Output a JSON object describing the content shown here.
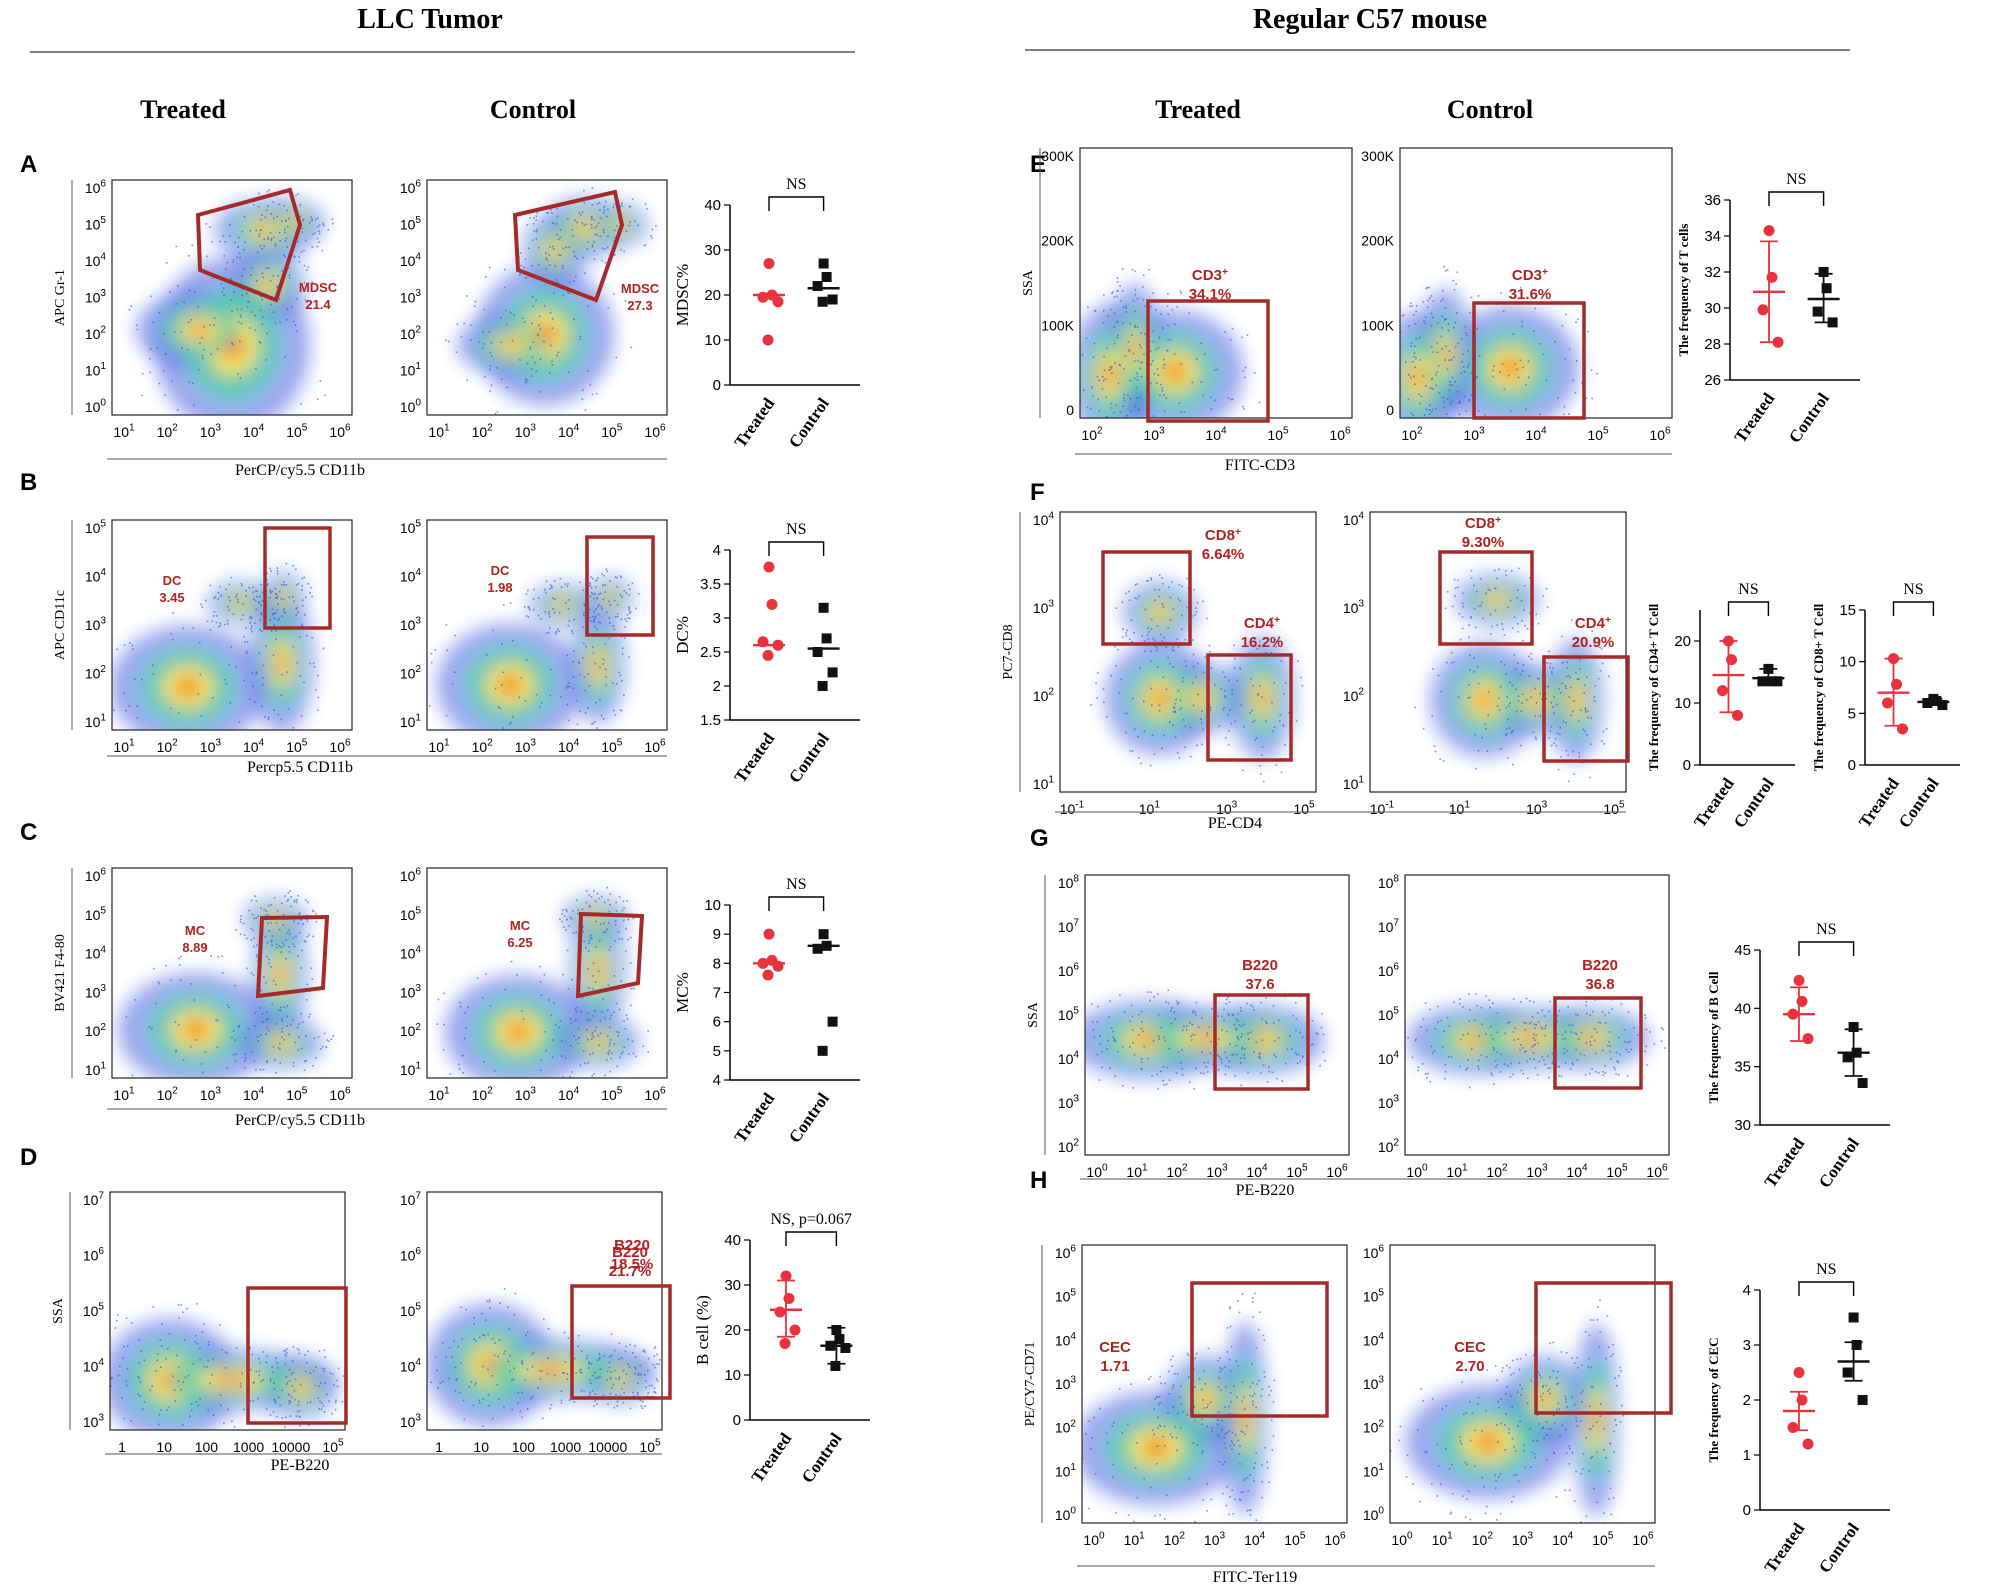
{
  "sections": {
    "left_title": "LLC Tumor",
    "right_title": "Regular C57 mouse",
    "treated_label": "Treated",
    "control_label": "Control"
  },
  "colors": {
    "gate": "#a52a2a",
    "gate_label": "#b22222",
    "treated_dots": "#e8323c",
    "control_dots": "#111111",
    "density_low": "#2a45d8",
    "density_mid": "#2ec4a0",
    "density_high": "#f7e51e",
    "density_peak": "#f0281e"
  },
  "panels": [
    {
      "id": "A",
      "y_axis_label": "APC Gr-1",
      "x_axis_label": "PerCP/cy5.5 CD11b",
      "y_ticks": [
        "10^6",
        "10^5",
        "10^4",
        "10^3",
        "10^2",
        "10^1",
        "10^0"
      ],
      "x_ticks": [
        "10^1",
        "10^2",
        "10^3",
        "10^4",
        "10^5",
        "10^6"
      ],
      "gates": [
        {
          "name": "MDSC",
          "value": "21.4"
        },
        {
          "name": "MDSC",
          "value": "27.3"
        }
      ],
      "chart_data": {
        "type": "scatter",
        "title": "NS",
        "ylabel": "MDSC%",
        "ylim": [
          0,
          40
        ],
        "y_ticks": [
          0,
          10,
          20,
          30,
          40
        ],
        "categories": [
          "Treated",
          "Control"
        ],
        "series": [
          {
            "name": "Treated",
            "values": [
              27,
              20,
              19.5,
              18.5,
              10
            ],
            "mean": 20
          },
          {
            "name": "Control",
            "values": [
              27,
              24,
              22,
              19,
              18.5
            ],
            "mean": 21.5
          }
        ],
        "significance": "NS"
      }
    },
    {
      "id": "B",
      "y_axis_label": "APC CD11c",
      "x_axis_label": "Percp5.5 CD11b",
      "y_ticks": [
        "10^5",
        "10^4",
        "10^3",
        "10^2",
        "10^1"
      ],
      "x_ticks": [
        "10^1",
        "10^2",
        "10^3",
        "10^4",
        "10^5",
        "10^6"
      ],
      "gates": [
        {
          "name": "DC",
          "value": "3.45"
        },
        {
          "name": "DC",
          "value": "1.98"
        }
      ],
      "chart_data": {
        "type": "scatter",
        "title": "NS",
        "ylabel": "DC%",
        "ylim": [
          1.5,
          4.0
        ],
        "y_ticks": [
          1.5,
          2.0,
          2.5,
          3.0,
          3.5,
          4.0
        ],
        "categories": [
          "Treated",
          "Control"
        ],
        "series": [
          {
            "name": "Treated",
            "values": [
              3.75,
              3.2,
              2.65,
              2.6,
              2.45
            ],
            "mean": 2.6
          },
          {
            "name": "Control",
            "values": [
              3.15,
              2.7,
              2.5,
              2.2,
              2.0
            ],
            "mean": 2.55
          }
        ],
        "significance": "NS"
      }
    },
    {
      "id": "C",
      "y_axis_label": "BV421 F4-80",
      "x_axis_label": "PerCP/cy5.5 CD11b",
      "y_ticks": [
        "10^6",
        "10^5",
        "10^4",
        "10^3",
        "10^2",
        "10^1"
      ],
      "x_ticks": [
        "10^1",
        "10^2",
        "10^3",
        "10^4",
        "10^5",
        "10^6"
      ],
      "gates": [
        {
          "name": "MC",
          "value": "8.89"
        },
        {
          "name": "MC",
          "value": "6.25"
        }
      ],
      "chart_data": {
        "type": "scatter",
        "title": "NS",
        "ylabel": "MC%",
        "ylim": [
          4,
          10
        ],
        "y_ticks": [
          4,
          5,
          6,
          7,
          8,
          9,
          10
        ],
        "categories": [
          "Treated",
          "Control"
        ],
        "series": [
          {
            "name": "Treated",
            "values": [
              9.0,
              8.1,
              8.0,
              7.9,
              7.6
            ],
            "mean": 8.0
          },
          {
            "name": "Control",
            "values": [
              9.0,
              8.6,
              8.5,
              6.0,
              5.0
            ],
            "mean": 8.6
          }
        ],
        "significance": "NS"
      }
    },
    {
      "id": "D",
      "y_axis_label": "SSA",
      "x_axis_label": "PE-B220",
      "y_ticks": [
        "10^7",
        "10^6",
        "10^5",
        "10^4",
        "10^3"
      ],
      "x_ticks": [
        "1",
        "10",
        "100",
        "1000",
        "10000",
        "10^5"
      ],
      "gates": [
        {
          "name": "B220",
          "value": "21.7%"
        },
        {
          "name": "B220",
          "value": "18.5%"
        }
      ],
      "chart_data": {
        "type": "scatter",
        "title": "NS, p=0.067",
        "ylabel": "B cell (%)",
        "ylim": [
          0,
          40
        ],
        "y_ticks": [
          0,
          10,
          20,
          30,
          40
        ],
        "categories": [
          "Treated",
          "Control"
        ],
        "series": [
          {
            "name": "Treated",
            "values": [
              32,
              27,
              24,
              20,
              17
            ],
            "mean": 24.5,
            "err": [
              18.5,
              31
            ]
          },
          {
            "name": "Control",
            "values": [
              20,
              18,
              16.5,
              16,
              12
            ],
            "mean": 16.5,
            "err": [
              12.5,
              20.5
            ]
          }
        ],
        "significance": "NS, p=0.067"
      }
    },
    {
      "id": "E",
      "y_axis_label": "SSA",
      "x_axis_label": "FITC-CD3",
      "y_ticks": [
        "300K",
        "200K",
        "100K",
        "0"
      ],
      "x_ticks": [
        "10^2",
        "10^3",
        "10^4",
        "10^5",
        "10^6"
      ],
      "gates": [
        {
          "name": "CD3+",
          "value": "34.1%"
        },
        {
          "name": "CD3+",
          "value": "31.6%"
        }
      ],
      "chart_data": {
        "type": "scatter",
        "title": "NS",
        "ylabel": "The frequency of T cells",
        "ylim": [
          26,
          36
        ],
        "y_ticks": [
          26,
          28,
          30,
          32,
          34,
          36
        ],
        "categories": [
          "Treated",
          "Control"
        ],
        "series": [
          {
            "name": "Treated",
            "values": [
              34.3,
              31.7,
              29.9,
              28.1
            ],
            "mean": 30.9,
            "err": [
              28.1,
              33.7
            ]
          },
          {
            "name": "Control",
            "values": [
              32.0,
              31.1,
              29.8,
              29.2
            ],
            "mean": 30.5,
            "err": [
              29.2,
              31.9
            ]
          }
        ],
        "significance": "NS"
      }
    },
    {
      "id": "F",
      "y_axis_label": "PC7-CD8",
      "x_axis_label": "PE-CD4",
      "y_ticks": [
        "10^4",
        "10^3",
        "10^2",
        "10^1"
      ],
      "x_ticks": [
        "10^-1",
        "10^1",
        "10^3",
        "10^5"
      ],
      "gates": [
        {
          "name": "CD8+",
          "value": "6.64%"
        },
        {
          "name": "CD4+",
          "value": "16.2%"
        },
        {
          "name": "CD8+",
          "value": "9.30%"
        },
        {
          "name": "CD4+",
          "value": "20.9%"
        }
      ],
      "chart_data": [
        {
          "type": "scatter",
          "title": "NS",
          "ylabel": "The frequency of CD4+ T Cell",
          "ylim": [
            0,
            25
          ],
          "y_ticks": [
            0,
            10,
            20
          ],
          "categories": [
            "Treated",
            "Control"
          ],
          "series": [
            {
              "name": "Treated",
              "values": [
                20,
                17,
                12,
                8
              ],
              "mean": 14.5,
              "err": [
                8.5,
                20
              ]
            },
            {
              "name": "Control",
              "values": [
                15.5,
                13.5,
                13.5,
                13.5
              ],
              "mean": 14,
              "err": [
                13,
                15.5
              ]
            }
          ],
          "significance": "NS"
        },
        {
          "type": "scatter",
          "title": "NS",
          "ylabel": "The frequency of CD8+ T Cell",
          "ylim": [
            0,
            15
          ],
          "y_ticks": [
            0,
            5,
            10,
            15
          ],
          "categories": [
            "Treated",
            "Control"
          ],
          "series": [
            {
              "name": "Treated",
              "values": [
                10.3,
                7.8,
                6,
                3.5
              ],
              "mean": 7,
              "err": [
                3.8,
                10.3
              ]
            },
            {
              "name": "Control",
              "values": [
                6.4,
                6.2,
                6.0,
                5.8
              ],
              "mean": 6.1,
              "err": [
                5.8,
                6.4
              ]
            }
          ],
          "significance": "NS"
        }
      ]
    },
    {
      "id": "G",
      "y_axis_label": "SSA",
      "x_axis_label": "PE-B220",
      "y_ticks": [
        "10^8",
        "10^7",
        "10^6",
        "10^5",
        "10^4",
        "10^3",
        "10^2"
      ],
      "x_ticks": [
        "10^0",
        "10^1",
        "10^2",
        "10^3",
        "10^4",
        "10^5",
        "10^6"
      ],
      "gates": [
        {
          "name": "B220",
          "value": "37.6"
        },
        {
          "name": "B220",
          "value": "36.8"
        }
      ],
      "chart_data": {
        "type": "scatter",
        "title": "NS",
        "ylabel": "The frequency of B Cell",
        "ylim": [
          30,
          45
        ],
        "y_ticks": [
          30,
          35,
          40,
          45
        ],
        "categories": [
          "Treated",
          "Control"
        ],
        "series": [
          {
            "name": "Treated",
            "values": [
              42.4,
              40.6,
              39.5,
              37.4
            ],
            "mean": 39.5,
            "err": [
              37.2,
              41.8
            ]
          },
          {
            "name": "Control",
            "values": [
              38.4,
              36.2,
              35.8,
              33.6
            ],
            "mean": 36.2,
            "err": [
              34.2,
              38.2
            ]
          }
        ],
        "significance": "NS"
      }
    },
    {
      "id": "H",
      "y_axis_label": "PE/CY7-CD71",
      "x_axis_label": "FITC-Ter119",
      "y_ticks": [
        "10^6",
        "10^5",
        "10^4",
        "10^3",
        "10^2",
        "10^1",
        "10^0"
      ],
      "x_ticks": [
        "10^0",
        "10^1",
        "10^2",
        "10^3",
        "10^4",
        "10^5",
        "10^6"
      ],
      "gates": [
        {
          "name": "CEC",
          "value": "1.71"
        },
        {
          "name": "CEC",
          "value": "2.70"
        }
      ],
      "chart_data": {
        "type": "scatter",
        "title": "NS",
        "ylabel": "The frequency of CEC",
        "ylim": [
          0,
          4
        ],
        "y_ticks": [
          0,
          1,
          2,
          3,
          4
        ],
        "categories": [
          "Treated",
          "Control"
        ],
        "series": [
          {
            "name": "Treated",
            "values": [
              2.5,
              2.0,
              1.5,
              1.2
            ],
            "mean": 1.8,
            "err": [
              1.45,
              2.15
            ]
          },
          {
            "name": "Control",
            "values": [
              3.5,
              3.0,
              2.5,
              2.0
            ],
            "mean": 2.7,
            "err": [
              2.35,
              3.05
            ]
          }
        ],
        "significance": "NS"
      }
    }
  ]
}
